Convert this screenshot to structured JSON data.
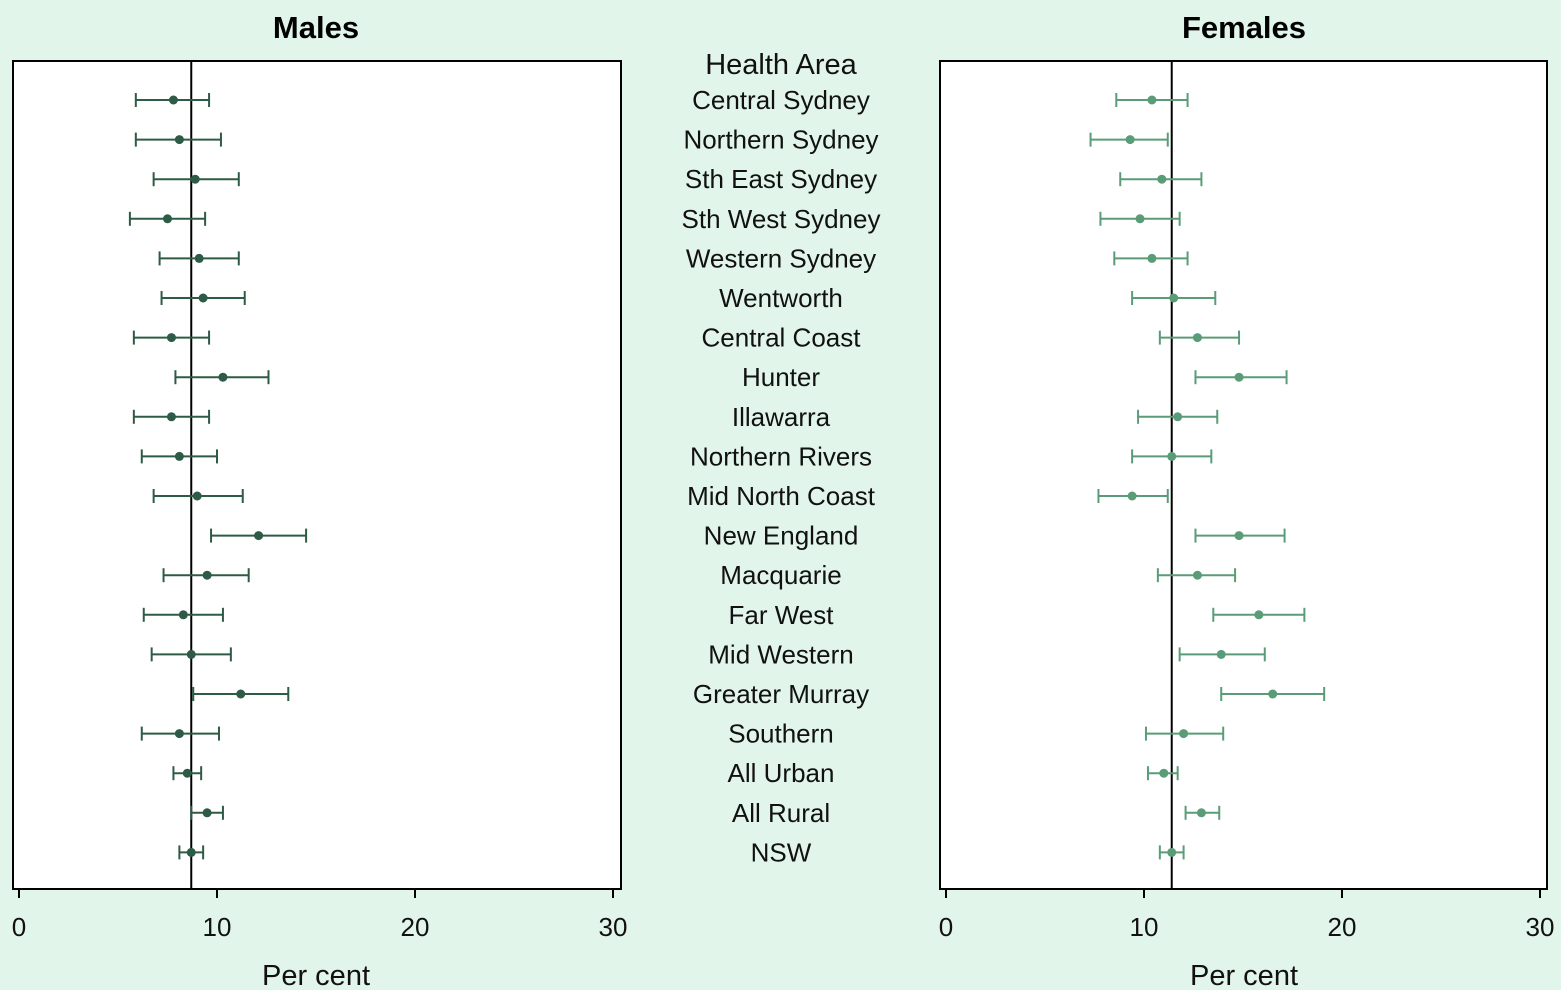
{
  "chart_data": [
    {
      "type": "scatter",
      "title": "Males",
      "xlabel": "Per cent",
      "xlim": [
        0,
        30
      ],
      "xticks": [
        0,
        10,
        20,
        30
      ],
      "color": "#2e5b45",
      "reference_line": 8.7,
      "categories_header": "Health Area",
      "categories": [
        "Central Sydney",
        "Northern Sydney",
        "Sth East Sydney",
        "Sth West Sydney",
        "Western Sydney",
        "Wentworth",
        "Central Coast",
        "Hunter",
        "Illawarra",
        "Northern Rivers",
        "Mid North Coast",
        "New England",
        "Macquarie",
        "Far West",
        "Mid Western",
        "Greater Murray",
        "Southern",
        "All Urban",
        "All Rural",
        "NSW"
      ],
      "estimate": [
        7.8,
        8.1,
        8.9,
        7.5,
        9.1,
        9.3,
        7.7,
        10.3,
        7.7,
        8.1,
        9.0,
        12.1,
        9.5,
        8.3,
        8.7,
        11.2,
        8.1,
        8.5,
        9.5,
        8.7
      ],
      "lower": [
        5.9,
        5.9,
        6.8,
        5.6,
        7.1,
        7.2,
        5.8,
        7.9,
        5.8,
        6.2,
        6.8,
        9.7,
        7.3,
        6.3,
        6.7,
        8.8,
        6.2,
        7.8,
        8.7,
        8.1
      ],
      "upper": [
        9.6,
        10.2,
        11.1,
        9.4,
        11.1,
        11.4,
        9.6,
        12.6,
        9.6,
        10.0,
        11.3,
        14.5,
        11.6,
        10.3,
        10.7,
        13.6,
        10.1,
        9.2,
        10.3,
        9.3
      ]
    },
    {
      "type": "scatter",
      "title": "Females",
      "xlabel": "Per cent",
      "xlim": [
        0,
        30
      ],
      "xticks": [
        0,
        10,
        20,
        30
      ],
      "color": "#5a9c78",
      "reference_line": 11.4,
      "categories": [
        "Central Sydney",
        "Northern Sydney",
        "Sth East Sydney",
        "Sth West Sydney",
        "Western Sydney",
        "Wentworth",
        "Central Coast",
        "Hunter",
        "Illawarra",
        "Northern Rivers",
        "Mid North Coast",
        "New England",
        "Macquarie",
        "Far West",
        "Mid Western",
        "Greater Murray",
        "Southern",
        "All Urban",
        "All Rural",
        "NSW"
      ],
      "estimate": [
        10.4,
        9.3,
        10.9,
        9.8,
        10.4,
        11.5,
        12.7,
        14.8,
        11.7,
        11.4,
        9.4,
        14.8,
        12.7,
        15.8,
        13.9,
        16.5,
        12.0,
        11.0,
        12.9,
        11.4
      ],
      "lower": [
        8.6,
        7.3,
        8.8,
        7.8,
        8.5,
        9.4,
        10.8,
        12.6,
        9.7,
        9.4,
        7.7,
        12.6,
        10.7,
        13.5,
        11.8,
        13.9,
        10.1,
        10.2,
        12.1,
        10.8
      ],
      "upper": [
        12.2,
        11.2,
        12.9,
        11.8,
        12.2,
        13.6,
        14.8,
        17.2,
        13.7,
        13.4,
        11.2,
        17.1,
        14.6,
        18.1,
        16.1,
        19.1,
        14.0,
        11.7,
        13.8,
        12.0
      ]
    }
  ]
}
